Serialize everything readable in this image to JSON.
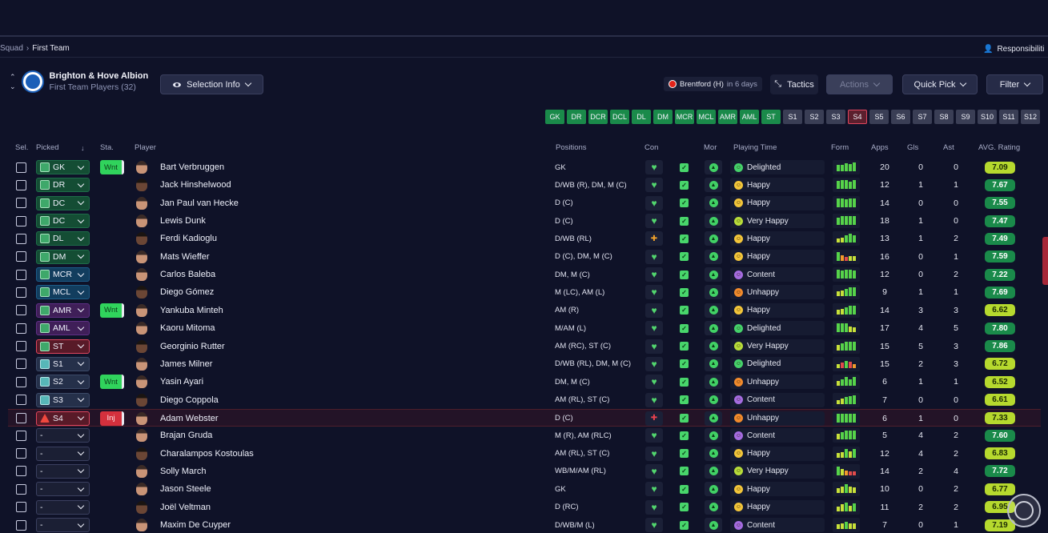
{
  "breadcrumb": {
    "root": "Squad",
    "current": "First Team"
  },
  "responsibilities_label": "Responsibiliti",
  "club": {
    "name": "Brighton & Hove Albion",
    "subtitle": "First Team Players (32)"
  },
  "toolbar": {
    "selection_info": "Selection Info",
    "next_match_team": "Brentford (H)",
    "next_match_days": "in 6 days",
    "tactics": "Tactics",
    "actions": "Actions",
    "quick_pick": "Quick Pick",
    "filter": "Filter"
  },
  "position_filters": [
    {
      "label": "GK",
      "state": "green"
    },
    {
      "label": "DR",
      "state": "green"
    },
    {
      "label": "DCR",
      "state": "green"
    },
    {
      "label": "DCL",
      "state": "green"
    },
    {
      "label": "DL",
      "state": "green"
    },
    {
      "label": "DM",
      "state": "green"
    },
    {
      "label": "MCR",
      "state": "green"
    },
    {
      "label": "MCL",
      "state": "green"
    },
    {
      "label": "AMR",
      "state": "green"
    },
    {
      "label": "AML",
      "state": "green"
    },
    {
      "label": "ST",
      "state": "green"
    },
    {
      "label": "S1",
      "state": "sub"
    },
    {
      "label": "S2",
      "state": "sub"
    },
    {
      "label": "S3",
      "state": "sub"
    },
    {
      "label": "S4",
      "state": "selected"
    },
    {
      "label": "S5",
      "state": "sub"
    },
    {
      "label": "S6",
      "state": "sub"
    },
    {
      "label": "S7",
      "state": "sub"
    },
    {
      "label": "S8",
      "state": "sub"
    },
    {
      "label": "S9",
      "state": "sub"
    },
    {
      "label": "S10",
      "state": "sub"
    },
    {
      "label": "S11",
      "state": "sub"
    },
    {
      "label": "S12",
      "state": "sub"
    }
  ],
  "columns": {
    "sel": "Sel.",
    "picked": "Picked",
    "status": "Sta.",
    "player": "Player",
    "positions": "Positions",
    "con": "Con",
    "mor": "Mor",
    "playing_time": "Playing Time",
    "form": "Form",
    "apps": "Apps",
    "gls": "Gls",
    "ast": "Ast",
    "avg_rating": "AVG. Rating"
  },
  "colors": {
    "happy": "#f2c53a",
    "delighted": "#45d16a",
    "very_happy": "#b7dc3a",
    "content": "#a56ce0",
    "unhappy": "#f08a2c",
    "form_green": "#56d34a",
    "form_lime": "#c8e13a",
    "form_orange": "#f29b2b",
    "form_red": "#e24b4b"
  },
  "players": [
    {
      "picked": "GK",
      "pick_style": "gr",
      "status": "Wnt",
      "name": "Bart Verbruggen",
      "positions": "GK",
      "con": "heart",
      "playing_time": "Delighted",
      "pt_key": "delighted",
      "form": [
        "g",
        "g",
        "g",
        "g",
        "g"
      ],
      "form_levels": [
        0.6,
        0.6,
        0.9,
        0.8,
        1.0
      ],
      "apps": "20",
      "gls": "0",
      "ast": "0",
      "rating": "7.09",
      "rating_style": "lime"
    },
    {
      "picked": "DR",
      "pick_style": "gr",
      "status": "",
      "name": "Jack Hinshelwood",
      "positions": "D/WB (R), DM, M (C)",
      "con": "heart",
      "playing_time": "Happy",
      "pt_key": "happy",
      "form": [
        "g",
        "g",
        "g",
        "g",
        "g"
      ],
      "form_levels": [
        0.9,
        1.0,
        1.0,
        0.7,
        1.0
      ],
      "apps": "12",
      "gls": "1",
      "ast": "1",
      "rating": "7.67",
      "rating_style": "green"
    },
    {
      "picked": "DC",
      "pick_style": "gr",
      "status": "",
      "name": "Jan Paul van Hecke",
      "positions": "D (C)",
      "con": "heart",
      "playing_time": "Happy",
      "pt_key": "happy",
      "form": [
        "g",
        "g",
        "g",
        "g",
        "g"
      ],
      "form_levels": [
        1.0,
        1.0,
        0.9,
        1.0,
        1.0
      ],
      "apps": "14",
      "gls": "0",
      "ast": "0",
      "rating": "7.55",
      "rating_style": "green"
    },
    {
      "picked": "DC",
      "pick_style": "gr",
      "status": "",
      "name": "Lewis Dunk",
      "positions": "D (C)",
      "con": "heart",
      "playing_time": "Very Happy",
      "pt_key": "very_happy",
      "form": [
        "g",
        "g",
        "g",
        "g",
        "g"
      ],
      "form_levels": [
        0.7,
        1.0,
        1.0,
        1.0,
        1.0
      ],
      "apps": "18",
      "gls": "1",
      "ast": "0",
      "rating": "7.47",
      "rating_style": "green"
    },
    {
      "picked": "DL",
      "pick_style": "gr",
      "status": "",
      "name": "Ferdi Kadioglu",
      "positions": "D/WB (RL)",
      "con": "orange",
      "playing_time": "Happy",
      "pt_key": "happy",
      "form": [
        "l",
        "l",
        "g",
        "g",
        "g"
      ],
      "form_levels": [
        0.3,
        0.4,
        0.7,
        1.0,
        0.8
      ],
      "apps": "13",
      "gls": "1",
      "ast": "2",
      "rating": "7.49",
      "rating_style": "green"
    },
    {
      "picked": "DM",
      "pick_style": "gr",
      "status": "",
      "name": "Mats Wieffer",
      "positions": "D (C), DM, M (C)",
      "con": "heart",
      "playing_time": "Happy",
      "pt_key": "happy",
      "form": [
        "g",
        "o",
        "r",
        "l",
        "l"
      ],
      "form_levels": [
        1.0,
        0.5,
        0.3,
        0.4,
        0.4
      ],
      "apps": "16",
      "gls": "0",
      "ast": "1",
      "rating": "7.59",
      "rating_style": "green"
    },
    {
      "picked": "MCR",
      "pick_style": "bl",
      "status": "",
      "name": "Carlos Baleba",
      "positions": "DM, M (C)",
      "con": "heart",
      "playing_time": "Content",
      "pt_key": "content",
      "form": [
        "g",
        "g",
        "g",
        "g",
        "g"
      ],
      "form_levels": [
        1.0,
        0.9,
        1.0,
        1.0,
        0.9
      ],
      "apps": "12",
      "gls": "0",
      "ast": "2",
      "rating": "7.22",
      "rating_style": "green"
    },
    {
      "picked": "MCL",
      "pick_style": "bl",
      "status": "",
      "name": "Diego Gómez",
      "positions": "M (LC), AM (L)",
      "con": "heart",
      "playing_time": "Unhappy",
      "pt_key": "unhappy",
      "form": [
        "l",
        "l",
        "g",
        "g",
        "g"
      ],
      "form_levels": [
        0.4,
        0.5,
        0.7,
        1.0,
        1.0
      ],
      "apps": "9",
      "gls": "1",
      "ast": "1",
      "rating": "7.69",
      "rating_style": "green"
    },
    {
      "picked": "AMR",
      "pick_style": "pu",
      "status": "Wnt",
      "name": "Yankuba Minteh",
      "positions": "AM (R)",
      "con": "heart",
      "playing_time": "Happy",
      "pt_key": "happy",
      "form": [
        "l",
        "l",
        "g",
        "g",
        "g"
      ],
      "form_levels": [
        0.4,
        0.5,
        0.8,
        1.0,
        1.0
      ],
      "apps": "14",
      "gls": "3",
      "ast": "3",
      "rating": "6.62",
      "rating_style": "lime"
    },
    {
      "picked": "AML",
      "pick_style": "pu",
      "status": "",
      "name": "Kaoru Mitoma",
      "positions": "M/AM (L)",
      "con": "heart",
      "playing_time": "Delighted",
      "pt_key": "delighted",
      "form": [
        "g",
        "g",
        "g",
        "l",
        "l"
      ],
      "form_levels": [
        1.0,
        1.0,
        1.0,
        0.5,
        0.4
      ],
      "apps": "17",
      "gls": "4",
      "ast": "5",
      "rating": "7.80",
      "rating_style": "green"
    },
    {
      "picked": "ST",
      "pick_style": "red",
      "status": "",
      "name": "Georginio Rutter",
      "positions": "AM (RC), ST (C)",
      "con": "heart",
      "playing_time": "Very Happy",
      "pt_key": "very_happy",
      "form": [
        "l",
        "g",
        "g",
        "g",
        "g"
      ],
      "form_levels": [
        0.5,
        0.8,
        1.0,
        1.0,
        1.0
      ],
      "apps": "15",
      "gls": "5",
      "ast": "3",
      "rating": "7.86",
      "rating_style": "green"
    },
    {
      "picked": "S1",
      "pick_style": "sub",
      "status": "",
      "name": "James Milner",
      "positions": "D/WB (RL), DM, M (C)",
      "con": "heart",
      "playing_time": "Delighted",
      "pt_key": "delighted",
      "form": [
        "l",
        "r",
        "g",
        "r",
        "o"
      ],
      "form_levels": [
        0.3,
        0.5,
        0.8,
        0.6,
        0.3
      ],
      "apps": "15",
      "gls": "2",
      "ast": "3",
      "rating": "6.72",
      "rating_style": "lime"
    },
    {
      "picked": "S2",
      "pick_style": "sub",
      "status": "Wnt",
      "name": "Yasin Ayari",
      "positions": "DM, M (C)",
      "con": "heart",
      "playing_time": "Unhappy",
      "pt_key": "unhappy",
      "form": [
        "l",
        "g",
        "g",
        "g",
        "g"
      ],
      "form_levels": [
        0.4,
        0.6,
        1.0,
        0.6,
        1.0
      ],
      "apps": "6",
      "gls": "1",
      "ast": "1",
      "rating": "6.52",
      "rating_style": "lime"
    },
    {
      "picked": "S3",
      "pick_style": "sub",
      "status": "",
      "name": "Diego Coppola",
      "positions": "AM (RL), ST (C)",
      "con": "heart",
      "playing_time": "Content",
      "pt_key": "content",
      "form": [
        "l",
        "l",
        "g",
        "g",
        "g"
      ],
      "form_levels": [
        0.3,
        0.5,
        0.7,
        0.9,
        1.0
      ],
      "apps": "7",
      "gls": "0",
      "ast": "0",
      "rating": "6.61",
      "rating_style": "lime"
    },
    {
      "picked": "S4",
      "pick_style": "redwarn",
      "status": "Inj",
      "name": "Adam Webster",
      "positions": "D (C)",
      "con": "red",
      "playing_time": "Unhappy",
      "pt_key": "unhappy",
      "form": [
        "g",
        "g",
        "g",
        "g",
        "g"
      ],
      "form_levels": [
        1.0,
        1.0,
        1.0,
        1.0,
        1.0
      ],
      "apps": "6",
      "gls": "1",
      "ast": "0",
      "rating": "7.33",
      "rating_style": "lime"
    },
    {
      "picked": "-",
      "pick_style": "none",
      "status": "",
      "name": "Brajan Gruda",
      "positions": "M (R), AM (RLC)",
      "con": "heart",
      "playing_time": "Content",
      "pt_key": "content",
      "form": [
        "l",
        "g",
        "g",
        "g",
        "g"
      ],
      "form_levels": [
        0.5,
        0.8,
        1.0,
        1.0,
        1.0
      ],
      "apps": "5",
      "gls": "4",
      "ast": "2",
      "rating": "7.60",
      "rating_style": "green"
    },
    {
      "picked": "-",
      "pick_style": "none",
      "status": "",
      "name": "Charalampos Kostoulas",
      "positions": "AM (RL), ST (C)",
      "con": "heart",
      "playing_time": "Happy",
      "pt_key": "happy",
      "form": [
        "l",
        "l",
        "g",
        "l",
        "g"
      ],
      "form_levels": [
        0.4,
        0.5,
        1.0,
        0.6,
        1.0
      ],
      "apps": "12",
      "gls": "4",
      "ast": "2",
      "rating": "6.83",
      "rating_style": "lime"
    },
    {
      "picked": "-",
      "pick_style": "none",
      "status": "",
      "name": "Solly March",
      "positions": "WB/M/AM (RL)",
      "con": "heart",
      "playing_time": "Very Happy",
      "pt_key": "very_happy",
      "form": [
        "g",
        "l",
        "o",
        "r",
        "r"
      ],
      "form_levels": [
        1.0,
        0.6,
        0.4,
        0.3,
        0.3
      ],
      "apps": "14",
      "gls": "2",
      "ast": "4",
      "rating": "7.72",
      "rating_style": "green"
    },
    {
      "picked": "-",
      "pick_style": "none",
      "status": "",
      "name": "Jason Steele",
      "positions": "GK",
      "con": "heart",
      "playing_time": "Happy",
      "pt_key": "happy",
      "form": [
        "l",
        "l",
        "g",
        "l",
        "l"
      ],
      "form_levels": [
        0.4,
        0.6,
        1.0,
        0.6,
        0.5
      ],
      "apps": "10",
      "gls": "0",
      "ast": "2",
      "rating": "6.77",
      "rating_style": "lime"
    },
    {
      "picked": "-",
      "pick_style": "none",
      "status": "",
      "name": "Joël Veltman",
      "positions": "D (RC)",
      "con": "heart",
      "playing_time": "Happy",
      "pt_key": "happy",
      "form": [
        "l",
        "l",
        "g",
        "l",
        "g"
      ],
      "form_levels": [
        0.4,
        0.7,
        1.0,
        0.5,
        0.9
      ],
      "apps": "11",
      "gls": "2",
      "ast": "2",
      "rating": "6.95",
      "rating_style": "lime"
    },
    {
      "picked": "-",
      "pick_style": "none",
      "status": "",
      "name": "Maxim De Cuyper",
      "positions": "D/WB/M (L)",
      "con": "heart",
      "playing_time": "Content",
      "pt_key": "content",
      "form": [
        "l",
        "l",
        "g",
        "l",
        "l"
      ],
      "form_levels": [
        0.4,
        0.5,
        0.8,
        0.5,
        0.5
      ],
      "apps": "7",
      "gls": "0",
      "ast": "1",
      "rating": "7.19",
      "rating_style": "lime"
    }
  ]
}
